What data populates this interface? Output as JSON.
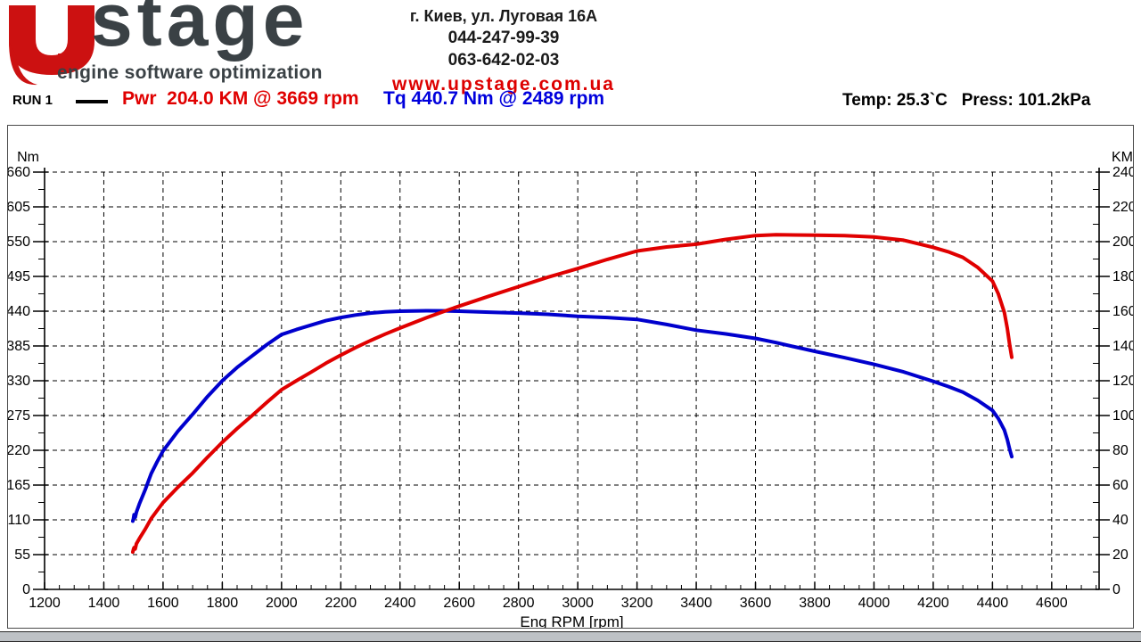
{
  "header": {
    "logo": {
      "brand": "stage",
      "tagline": "engine software optimization",
      "red": "#cc1111",
      "charcoal": "#3a4145"
    },
    "contact": {
      "address": "г. Киев, ул. Луговая 16А",
      "phone1": "044-247-99-39",
      "phone2": "063-642-02-03",
      "website": "www.upstage.com.ua",
      "website_color": "#dd0000"
    }
  },
  "run_info": {
    "run_label": "RUN 1",
    "power_summary": "Pwr  204.0 KM @ 3669 rpm",
    "power_color": "#e00000",
    "torque_summary": "Tq 440.7 Nm @ 2489 rpm",
    "torque_color": "#0000dd",
    "conditions": "Temp: 25.3`C   Press: 101.2kPa"
  },
  "chart_data": {
    "type": "line",
    "title": "",
    "xlabel": "Eng RPM [rpm]",
    "grid": "dashed",
    "x_axis": {
      "min": 1200,
      "max": 4760,
      "major_step": 200,
      "minor_step": 50,
      "last_label": 4600
    },
    "left_axis": {
      "label": "Nm",
      "min": 0,
      "max": 660,
      "major_step": 55,
      "minor_step": 27.5
    },
    "right_axis": {
      "label": "KM",
      "min": 0,
      "max": 240,
      "major_step": 20,
      "minor_step": 10
    },
    "series": [
      {
        "name": "Torque",
        "axis": "left",
        "unit": "Nm",
        "color": "#0000cd",
        "peak": {
          "value": 440.7,
          "rpm": 2489
        },
        "points": [
          [
            1498,
            108
          ],
          [
            1500,
            112
          ],
          [
            1502,
            118
          ],
          [
            1506,
            114
          ],
          [
            1510,
            122
          ],
          [
            1520,
            135
          ],
          [
            1540,
            158
          ],
          [
            1560,
            183
          ],
          [
            1580,
            202
          ],
          [
            1600,
            219
          ],
          [
            1650,
            250
          ],
          [
            1700,
            277
          ],
          [
            1750,
            305
          ],
          [
            1800,
            330
          ],
          [
            1850,
            351
          ],
          [
            1900,
            369
          ],
          [
            1950,
            387
          ],
          [
            2000,
            403
          ],
          [
            2050,
            411
          ],
          [
            2100,
            418
          ],
          [
            2150,
            425
          ],
          [
            2200,
            430
          ],
          [
            2250,
            434
          ],
          [
            2300,
            437
          ],
          [
            2350,
            439
          ],
          [
            2400,
            440
          ],
          [
            2489,
            440.7
          ],
          [
            2550,
            440.5
          ],
          [
            2600,
            440
          ],
          [
            2700,
            438.5
          ],
          [
            2800,
            437
          ],
          [
            2900,
            435
          ],
          [
            3000,
            432
          ],
          [
            3100,
            430
          ],
          [
            3200,
            427
          ],
          [
            3300,
            419
          ],
          [
            3400,
            410
          ],
          [
            3500,
            404
          ],
          [
            3600,
            397
          ],
          [
            3669,
            390.4
          ],
          [
            3700,
            387
          ],
          [
            3800,
            376.5
          ],
          [
            3900,
            366.5
          ],
          [
            4000,
            356
          ],
          [
            4100,
            344
          ],
          [
            4200,
            329
          ],
          [
            4250,
            321
          ],
          [
            4300,
            312
          ],
          [
            4350,
            299
          ],
          [
            4400,
            283
          ],
          [
            4420,
            270
          ],
          [
            4440,
            252
          ],
          [
            4450,
            237
          ],
          [
            4458,
            222
          ],
          [
            4465,
            210
          ]
        ]
      },
      {
        "name": "Power",
        "axis": "right",
        "unit": "KM",
        "color": "#e00000",
        "peak": {
          "value": 204.0,
          "rpm": 3669
        },
        "points": [
          [
            1498,
            21.5
          ],
          [
            1500,
            23
          ],
          [
            1502,
            24
          ],
          [
            1506,
            23.3
          ],
          [
            1510,
            26.2
          ],
          [
            1520,
            29.2
          ],
          [
            1540,
            34.7
          ],
          [
            1560,
            40.7
          ],
          [
            1580,
            45.4
          ],
          [
            1600,
            49.9
          ],
          [
            1650,
            58.7
          ],
          [
            1700,
            67.0
          ],
          [
            1750,
            76.0
          ],
          [
            1800,
            84.6
          ],
          [
            1850,
            92.5
          ],
          [
            1900,
            99.9
          ],
          [
            1950,
            107.5
          ],
          [
            2000,
            114.8
          ],
          [
            2050,
            120.0
          ],
          [
            2100,
            125.0
          ],
          [
            2150,
            130.1
          ],
          [
            2200,
            134.7
          ],
          [
            2250,
            139.1
          ],
          [
            2300,
            143.1
          ],
          [
            2350,
            146.8
          ],
          [
            2400,
            150.3
          ],
          [
            2489,
            156.2
          ],
          [
            2550,
            160.0
          ],
          [
            2600,
            162.9
          ],
          [
            2700,
            168.6
          ],
          [
            2800,
            174.1
          ],
          [
            2900,
            179.6
          ],
          [
            3000,
            184.5
          ],
          [
            3100,
            189.8
          ],
          [
            3200,
            194.6
          ],
          [
            3300,
            196.9
          ],
          [
            3400,
            198.5
          ],
          [
            3500,
            201.3
          ],
          [
            3600,
            203.5
          ],
          [
            3669,
            204.0
          ],
          [
            3700,
            203.9
          ],
          [
            3800,
            203.7
          ],
          [
            3900,
            203.5
          ],
          [
            4000,
            202.7
          ],
          [
            4100,
            200.8
          ],
          [
            4200,
            196.7
          ],
          [
            4250,
            194.2
          ],
          [
            4300,
            191.0
          ],
          [
            4350,
            185.2
          ],
          [
            4400,
            177.3
          ],
          [
            4420,
            169.9
          ],
          [
            4440,
            159.3
          ],
          [
            4450,
            150.2
          ],
          [
            4458,
            140.9
          ],
          [
            4465,
            133.5
          ]
        ]
      }
    ]
  }
}
